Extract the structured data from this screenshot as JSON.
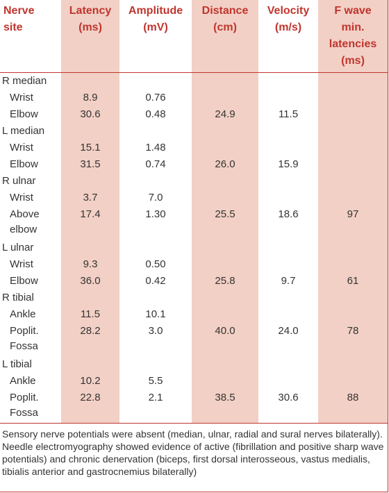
{
  "headers": {
    "site": [
      "Nerve",
      "site"
    ],
    "latency": [
      "Latency",
      "(ms)"
    ],
    "amplitude": [
      "Amplitude",
      "(mV)"
    ],
    "distance": [
      "Distance",
      "(cm)"
    ],
    "velocity": [
      "Velocity",
      "(m/s)"
    ],
    "fwave": [
      "F wave",
      "min.",
      "latencies",
      "(ms)"
    ]
  },
  "rows": [
    {
      "site": "R median",
      "group": true,
      "latency": "",
      "amplitude": "",
      "distance": "",
      "velocity": "",
      "fwave": ""
    },
    {
      "site": "Wrist",
      "latency": "8.9",
      "amplitude": "0.76",
      "distance": "",
      "velocity": "",
      "fwave": ""
    },
    {
      "site": "Elbow",
      "latency": "30.6",
      "amplitude": "0.48",
      "distance": "24.9",
      "velocity": "11.5",
      "fwave": ""
    },
    {
      "site": "L median",
      "group": true,
      "latency": "",
      "amplitude": "",
      "distance": "",
      "velocity": "",
      "fwave": ""
    },
    {
      "site": "Wrist",
      "latency": "15.1",
      "amplitude": "1.48",
      "distance": "",
      "velocity": "",
      "fwave": ""
    },
    {
      "site": "Elbow",
      "latency": "31.5",
      "amplitude": "0.74",
      "distance": "26.0",
      "velocity": "15.9",
      "fwave": ""
    },
    {
      "site": "R ulnar",
      "group": true,
      "latency": "",
      "amplitude": "",
      "distance": "",
      "velocity": "",
      "fwave": ""
    },
    {
      "site": "Wrist",
      "latency": "3.7",
      "amplitude": "7.0",
      "distance": "",
      "velocity": "",
      "fwave": ""
    },
    {
      "site": [
        "Above",
        "elbow"
      ],
      "latency": "17.4",
      "amplitude": "1.30",
      "distance": "25.5",
      "velocity": "18.6",
      "fwave": "97"
    },
    {
      "site": "L ulnar",
      "group": true,
      "latency": "",
      "amplitude": "",
      "distance": "",
      "velocity": "",
      "fwave": ""
    },
    {
      "site": "Wrist",
      "latency": "9.3",
      "amplitude": "0.50",
      "distance": "",
      "velocity": "",
      "fwave": ""
    },
    {
      "site": "Elbow",
      "latency": "36.0",
      "amplitude": "0.42",
      "distance": "25.8",
      "velocity": "9.7",
      "fwave": "61"
    },
    {
      "site": "R tibial",
      "group": true,
      "latency": "",
      "amplitude": "",
      "distance": "",
      "velocity": "",
      "fwave": ""
    },
    {
      "site": "Ankle",
      "latency": "11.5",
      "amplitude": "10.1",
      "distance": "",
      "velocity": "",
      "fwave": ""
    },
    {
      "site": [
        "Poplit.",
        "Fossa"
      ],
      "latency": "28.2",
      "amplitude": "3.0",
      "distance": "40.0",
      "velocity": "24.0",
      "fwave": "78"
    },
    {
      "site": "L tibial",
      "group": true,
      "latency": "",
      "amplitude": "",
      "distance": "",
      "velocity": "",
      "fwave": ""
    },
    {
      "site": "Ankle",
      "latency": "10.2",
      "amplitude": "5.5",
      "distance": "",
      "velocity": "",
      "fwave": ""
    },
    {
      "site": [
        "Poplit.",
        "Fossa"
      ],
      "latency": "22.8",
      "amplitude": "2.1",
      "distance": "38.5",
      "velocity": "30.6",
      "fwave": "88"
    }
  ],
  "footnote": "Sensory nerve potentials were absent (median, ulnar, radial and sural nerves bilaterally). Needle electromyography showed evidence of active (fibrillation and positive sharp wave potentials) and chronic denervation (biceps, first dorsal interosseous, vastus medialis, tibialis anterior and gastrocnemius bilaterally)",
  "colors": {
    "header_text": "#c0352e",
    "shaded_column": "#f2d0c5",
    "rule": "#c0352e",
    "body_text": "#333333"
  }
}
